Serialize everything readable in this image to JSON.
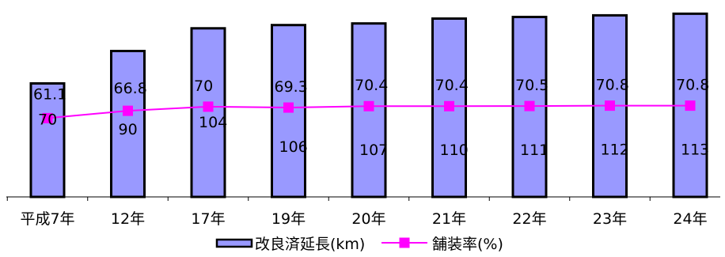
{
  "chart_data": {
    "type": "bar",
    "categories": [
      "平成7年",
      "12年",
      "17年",
      "19年",
      "20年",
      "21年",
      "22年",
      "23年",
      "24年"
    ],
    "series": [
      {
        "name": "改良済延長(km)",
        "type": "bar",
        "values": [
          70,
          90,
          104,
          106,
          107,
          110,
          111,
          112,
          113
        ],
        "color": "#9999ff"
      },
      {
        "name": "舗装率(%)",
        "type": "line",
        "values": [
          61.1,
          66.8,
          70,
          69.3,
          70.4,
          70.4,
          70.5,
          70.8,
          70.8
        ],
        "color": "#ff00ff"
      }
    ],
    "ylim_bars": [
      0,
      120
    ],
    "ylim_line": [
      0,
      115
    ],
    "grid": false,
    "legend_position": "bottom"
  }
}
